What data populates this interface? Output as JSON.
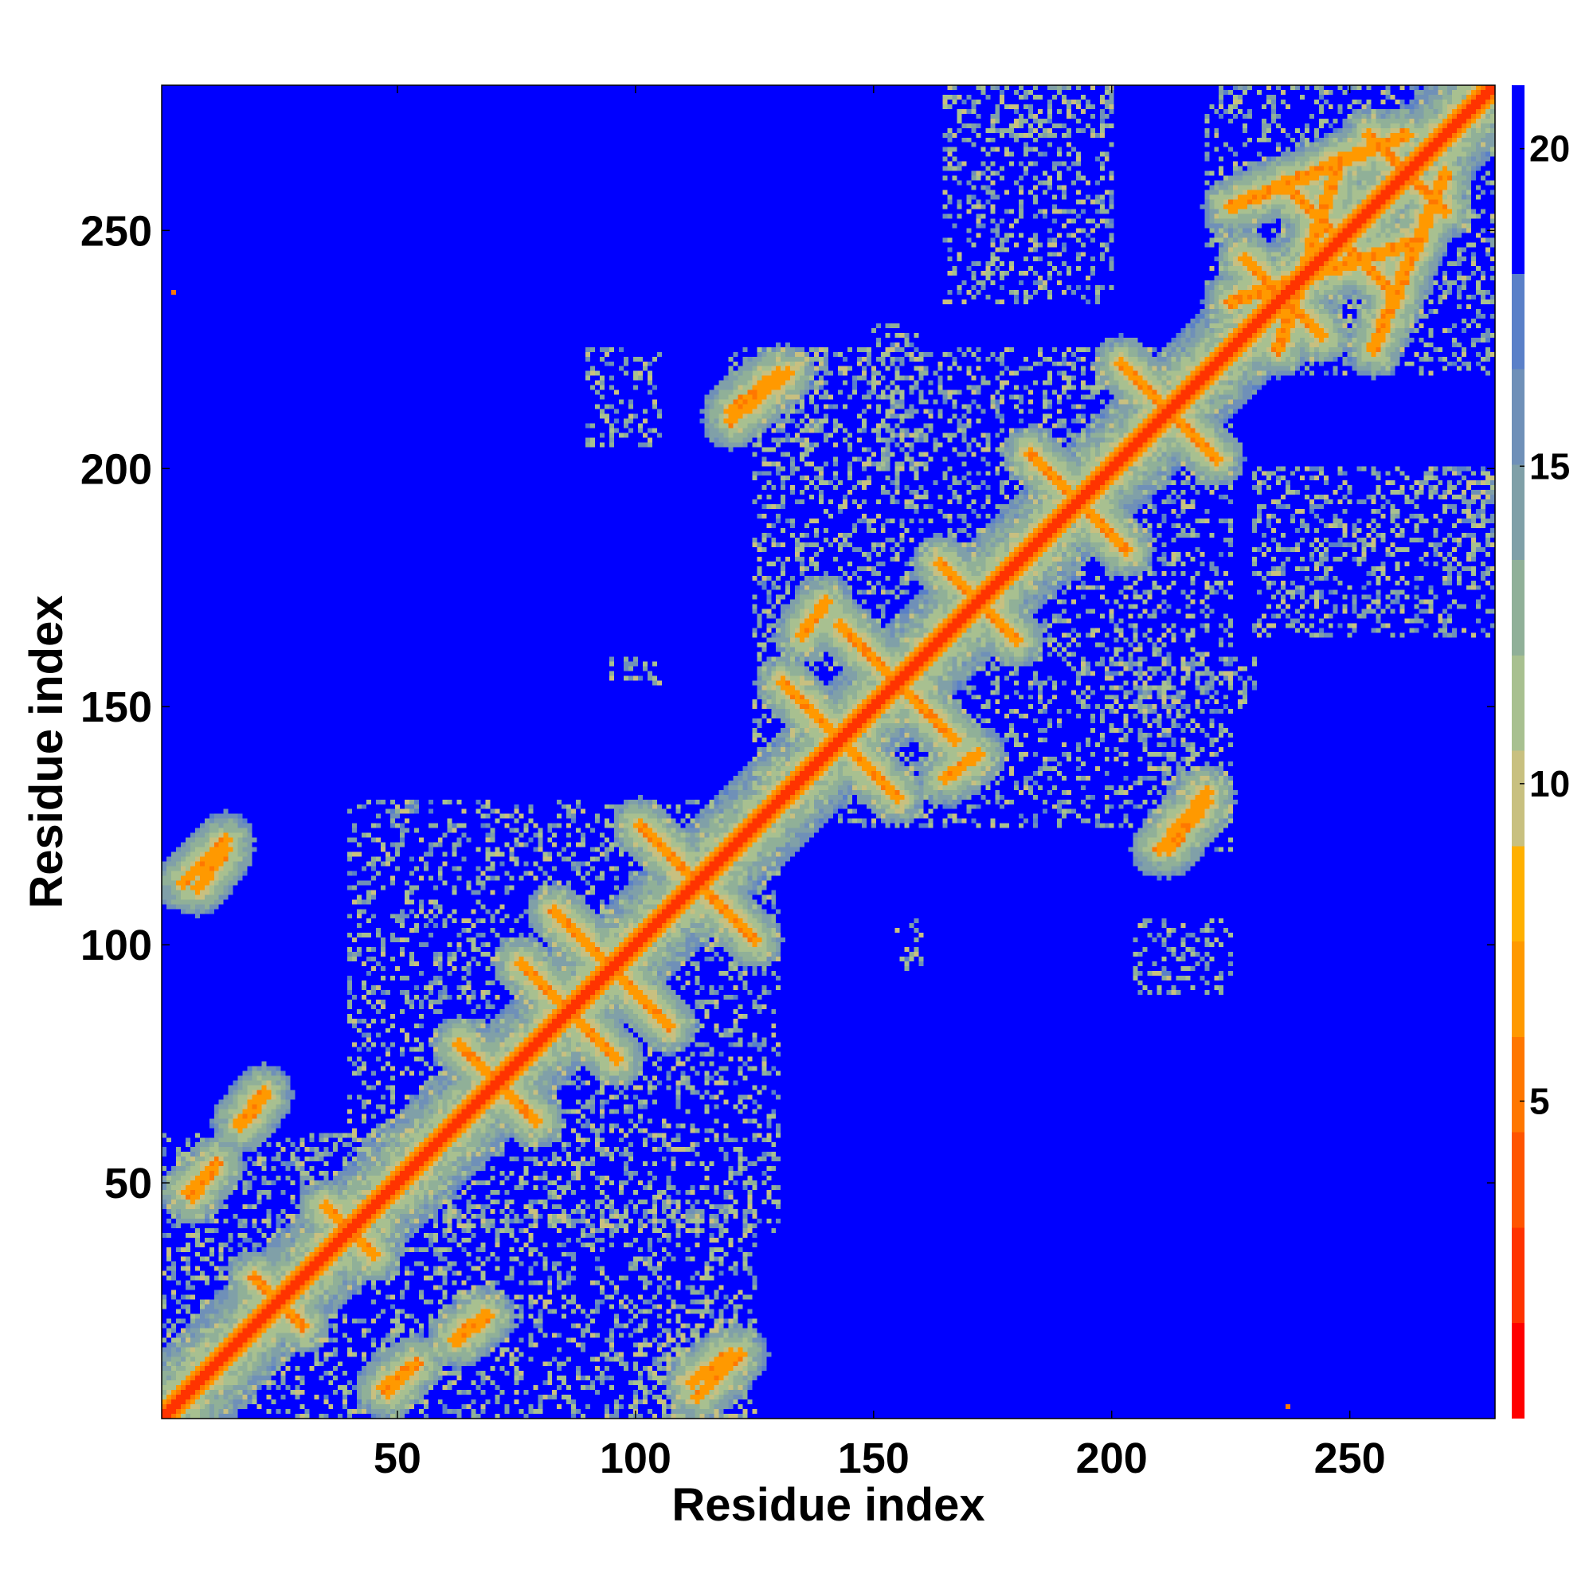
{
  "chart_data": {
    "type": "heatmap",
    "title": "",
    "xlabel": "Residue index",
    "ylabel": "Residue index",
    "n_residues": 280,
    "xlim": [
      1,
      280
    ],
    "ylim": [
      1,
      280
    ],
    "x_ticks": [
      50,
      100,
      150,
      200,
      250
    ],
    "y_ticks": [
      50,
      100,
      150,
      200,
      250
    ],
    "colorbar": {
      "placement": "right",
      "range": [
        0,
        21
      ],
      "ticks": [
        5,
        10,
        15,
        20
      ],
      "colors": [
        "#ff0000",
        "#ff3300",
        "#ff5500",
        "#ff7700",
        "#ff9900",
        "#ffb000",
        "#c8c080",
        "#a8c090",
        "#90b098",
        "#80a0a8",
        "#6f90b8",
        "#5a80c8",
        "#0000ff"
      ],
      "background_color": "#0000ff"
    },
    "symmetric": true,
    "diagonal_value": 2,
    "contact_structures": [
      {
        "kind": "antiparallel",
        "center": [
          113,
          113
        ],
        "half_length": 12,
        "value": 6
      },
      {
        "kind": "antiparallel",
        "center": [
          86,
          86
        ],
        "half_length": 10,
        "value": 6
      },
      {
        "kind": "antiparallel",
        "center": [
          71,
          71
        ],
        "half_length": 8,
        "value": 6
      },
      {
        "kind": "antiparallel",
        "center": [
          95,
          95
        ],
        "half_length": 12,
        "value": 6
      },
      {
        "kind": "antiparallel",
        "center": [
          40,
          40
        ],
        "half_length": 5,
        "value": 6
      },
      {
        "kind": "antiparallel",
        "center": [
          25,
          25
        ],
        "half_length": 5,
        "value": 6
      },
      {
        "kind": "antiparallel",
        "center": [
          143,
          143
        ],
        "half_length": 12,
        "value": 6
      },
      {
        "kind": "antiparallel",
        "center": [
          155,
          155
        ],
        "half_length": 12,
        "value": 6
      },
      {
        "kind": "antiparallel",
        "center": [
          172,
          172
        ],
        "half_length": 8,
        "value": 6
      },
      {
        "kind": "antiparallel",
        "center": [
          193,
          193
        ],
        "half_length": 10,
        "value": 6
      },
      {
        "kind": "antiparallel",
        "center": [
          212,
          212
        ],
        "half_length": 10,
        "value": 6
      },
      {
        "kind": "antiparallel",
        "center": [
          236,
          236
        ],
        "half_length": 8,
        "value": 6
      },
      {
        "kind": "antiparallel",
        "center": [
          248,
          248
        ],
        "half_length": 12,
        "value": 6
      },
      {
        "kind": "antiparallel",
        "center": [
          262,
          262
        ],
        "half_length": 8,
        "value": 6
      },
      {
        "kind": "parallel",
        "start": [
          5,
          113
        ],
        "end": [
          14,
          122
        ],
        "value": 6
      },
      {
        "kind": "parallel",
        "start": [
          17,
          63
        ],
        "end": [
          22,
          69
        ],
        "value": 6
      },
      {
        "kind": "parallel",
        "start": [
          6,
          48
        ],
        "end": [
          12,
          54
        ],
        "value": 6
      },
      {
        "kind": "parallel",
        "start": [
          47,
          7
        ],
        "end": [
          54,
          12
        ],
        "value": 6
      },
      {
        "kind": "parallel",
        "start": [
          62,
          17
        ],
        "end": [
          68,
          22
        ],
        "value": 6
      },
      {
        "kind": "parallel",
        "start": [
          112,
          8
        ],
        "end": [
          120,
          14
        ],
        "value": 6
      },
      {
        "kind": "parallel",
        "start": [
          120,
          210
        ],
        "end": [
          132,
          220
        ],
        "value": 6
      },
      {
        "kind": "parallel",
        "start": [
          212,
          120
        ],
        "end": [
          220,
          130
        ],
        "value": 6
      },
      {
        "kind": "parallel",
        "start": [
          165,
          135
        ],
        "end": [
          172,
          140
        ],
        "value": 6
      },
      {
        "kind": "parallel",
        "start": [
          235,
          225
        ],
        "end": [
          248,
          265
        ],
        "value": 6
      },
      {
        "kind": "parallel",
        "start": [
          255,
          225
        ],
        "end": [
          270,
          262
        ],
        "value": 6
      }
    ],
    "contact_blocks": [
      [
        1,
        60,
        1,
        60
      ],
      [
        40,
        130,
        40,
        130
      ],
      [
        60,
        125,
        1,
        45
      ],
      [
        100,
        125,
        1,
        25
      ],
      [
        125,
        225,
        125,
        225
      ],
      [
        120,
        140,
        205,
        225
      ],
      [
        210,
        225,
        120,
        140
      ],
      [
        220,
        280,
        220,
        280
      ],
      [
        165,
        200,
        235,
        280
      ],
      [
        230,
        280,
        165,
        200
      ],
      [
        175,
        200,
        270,
        280
      ],
      [
        270,
        280,
        175,
        200
      ],
      [
        95,
        105,
        155,
        160
      ],
      [
        155,
        160,
        95,
        105
      ],
      [
        205,
        225,
        90,
        105
      ],
      [
        90,
        105,
        205,
        225
      ],
      [
        200,
        230,
        150,
        160
      ],
      [
        150,
        160,
        200,
        230
      ]
    ],
    "isolated_contacts": [
      [
        3,
        237
      ],
      [
        237,
        3
      ]
    ]
  }
}
